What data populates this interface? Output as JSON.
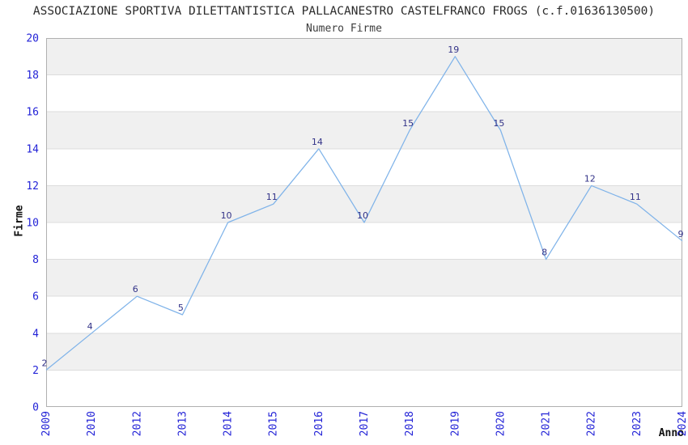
{
  "header": {
    "title": "ASSOCIAZIONE SPORTIVA DILETTANTISTICA PALLACANESTRO CASTELFRANCO FROGS (c.f.01636130500)",
    "subtitle": "Numero Firme"
  },
  "chart_data": {
    "type": "line",
    "title": "ASSOCIAZIONE SPORTIVA DILETTANTISTICA PALLACANESTRO CASTELFRANCO FROGS (c.f.01636130500)",
    "subtitle": "Numero Firme",
    "xlabel": "Anno",
    "ylabel": "Firme",
    "categories": [
      "2009",
      "2010",
      "2012",
      "2013",
      "2014",
      "2015",
      "2016",
      "2017",
      "2018",
      "2019",
      "2020",
      "2021",
      "2022",
      "2023",
      "2024"
    ],
    "values": [
      2,
      4,
      6,
      5,
      10,
      11,
      14,
      10,
      15,
      19,
      15,
      8,
      12,
      11,
      9
    ],
    "ylim": [
      0,
      20
    ],
    "ytick_step": 2,
    "yticks": [
      0,
      2,
      4,
      6,
      8,
      10,
      12,
      14,
      16,
      18,
      20
    ],
    "grid": "horizontal-alternating-bands",
    "legend_position": "none",
    "point_labels_visible": true,
    "colors": {
      "line": "#7fb3e9",
      "tick_label": "#2323d7",
      "point_label": "#333388",
      "band": "#f0f0f0",
      "gridline": "#dcdcdc",
      "plot_border": "#b0b0b0",
      "title": "#2b2b2b",
      "subtitle": "#3d3d3d",
      "axis_title": "#111111",
      "background": "#ffffff"
    }
  }
}
